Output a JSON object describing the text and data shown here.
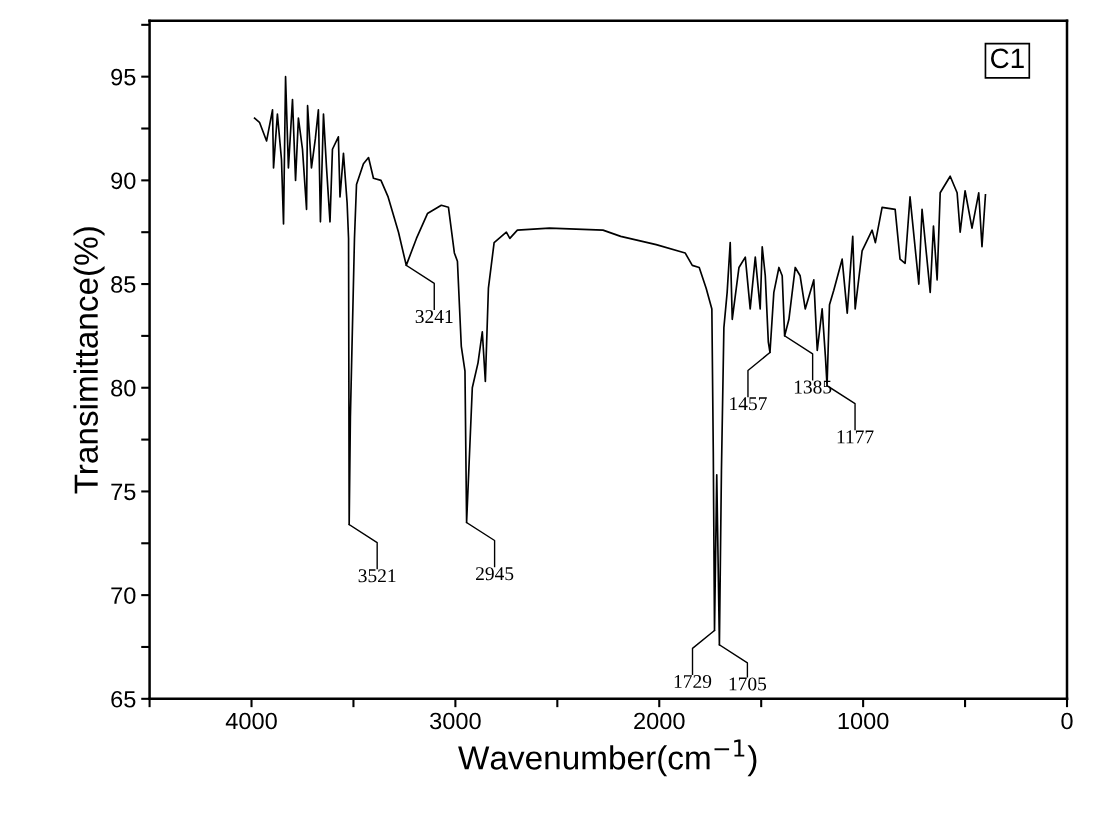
{
  "chart_data": {
    "type": "line",
    "xlabel": "Wavenumber(cm$^{−1}$)",
    "ylabel": "Transimittance(%)",
    "xlim": [
      4500,
      0
    ],
    "ylim": [
      65,
      97.7
    ],
    "xticks": [
      {
        "value": 4500,
        "label": null
      },
      4000,
      {
        "value": 3500,
        "label": null
      },
      3000,
      {
        "value": 2500,
        "label": null
      },
      2000,
      {
        "value": 1500,
        "label": null
      },
      1000,
      {
        "value": 500,
        "label": null
      },
      0
    ],
    "yticks": [
      65,
      {
        "value": 67.5,
        "label": null
      },
      70,
      {
        "value": 72.5,
        "label": null
      },
      75,
      {
        "value": 77.5,
        "label": null
      },
      80,
      {
        "value": 82.5,
        "label": null
      },
      85,
      {
        "value": 87.5,
        "label": null
      },
      90,
      {
        "value": 92.5,
        "label": null
      },
      95,
      {
        "value": 97.5,
        "label": null
      }
    ],
    "series": [
      {
        "color": "#000000",
        "x": [
          3985,
          3961,
          3926,
          3897,
          3892,
          3873,
          3853,
          3843,
          3833,
          3819,
          3799,
          3784,
          3770,
          3750,
          3730,
          3725,
          3706,
          3687,
          3672,
          3662,
          3647,
          3632,
          3615,
          3603,
          3574,
          3566,
          3549,
          3531,
          3524,
          3521,
          3515,
          3495,
          3485,
          3451,
          3426,
          3402,
          3365,
          3330,
          3279,
          3241,
          3191,
          3137,
          3069,
          3034,
          3005,
          2990,
          2971,
          2953,
          2945,
          2917,
          2889,
          2868,
          2853,
          2838,
          2810,
          2750,
          2733,
          2696,
          2539,
          2276,
          2189,
          2015,
          1873,
          1838,
          1804,
          1770,
          1742,
          1735,
          1729,
          1718,
          1705,
          1695,
          1683,
          1667,
          1652,
          1642,
          1609,
          1578,
          1554,
          1529,
          1505,
          1495,
          1480,
          1465,
          1457,
          1438,
          1413,
          1397,
          1385,
          1364,
          1333,
          1309,
          1284,
          1242,
          1225,
          1201,
          1185,
          1177,
          1165,
          1144,
          1103,
          1078,
          1051,
          1039,
          1005,
          956,
          940,
          907,
          843,
          819,
          794,
          770,
          727,
          711,
          671,
          655,
          637,
          622,
          573,
          539,
          524,
          500,
          466,
          433,
          417,
          400
        ],
        "values": [
          93.0,
          92.8,
          91.9,
          93.4,
          90.6,
          93.2,
          91.0,
          87.9,
          95.0,
          90.6,
          93.9,
          90.0,
          93.0,
          91.5,
          88.6,
          93.6,
          90.6,
          92.0,
          93.4,
          88.0,
          93.2,
          90.6,
          88.0,
          91.5,
          92.1,
          89.2,
          91.3,
          88.9,
          87.2,
          73.4,
          78.6,
          87.2,
          89.8,
          90.8,
          91.1,
          90.1,
          90.0,
          89.2,
          87.5,
          85.9,
          87.2,
          88.4,
          88.8,
          88.7,
          86.5,
          86.1,
          82.0,
          80.8,
          73.5,
          80.0,
          81.2,
          82.7,
          80.3,
          84.8,
          87.0,
          87.5,
          87.2,
          87.6,
          87.7,
          87.6,
          87.3,
          86.9,
          86.5,
          85.9,
          85.8,
          84.8,
          83.8,
          76.9,
          68.3,
          75.8,
          67.6,
          76.0,
          82.9,
          84.6,
          87.0,
          83.3,
          85.8,
          86.3,
          83.8,
          86.3,
          83.8,
          86.8,
          85.4,
          82.2,
          81.7,
          84.6,
          85.8,
          85.4,
          82.5,
          83.3,
          85.8,
          85.4,
          83.8,
          85.2,
          81.8,
          83.8,
          81.5,
          80.1,
          84.0,
          84.7,
          86.2,
          83.6,
          87.3,
          83.8,
          86.6,
          87.6,
          87.0,
          88.7,
          88.6,
          86.2,
          86.0,
          89.2,
          85.0,
          88.6,
          84.6,
          87.8,
          85.2,
          89.4,
          90.2,
          89.4,
          87.5,
          89.5,
          87.7,
          89.4,
          86.8,
          89.3
        ]
      }
    ],
    "annotations": [
      "C1",
      {
        "text": "3521",
        "x": 3521,
        "y": 73.4
      },
      {
        "text": "3241",
        "x": 3241,
        "y": 85.9
      },
      {
        "text": "2945",
        "x": 2945,
        "y": 73.5
      },
      {
        "text": "1729",
        "x": 1729,
        "y": 68.3
      },
      {
        "text": "1705",
        "x": 1705,
        "y": 67.6
      },
      {
        "text": "1457",
        "x": 1457,
        "y": 81.7
      },
      {
        "text": "1385",
        "x": 1385,
        "y": 82.5
      },
      {
        "text": "1177",
        "x": 1177,
        "y": 80.1
      }
    ]
  }
}
